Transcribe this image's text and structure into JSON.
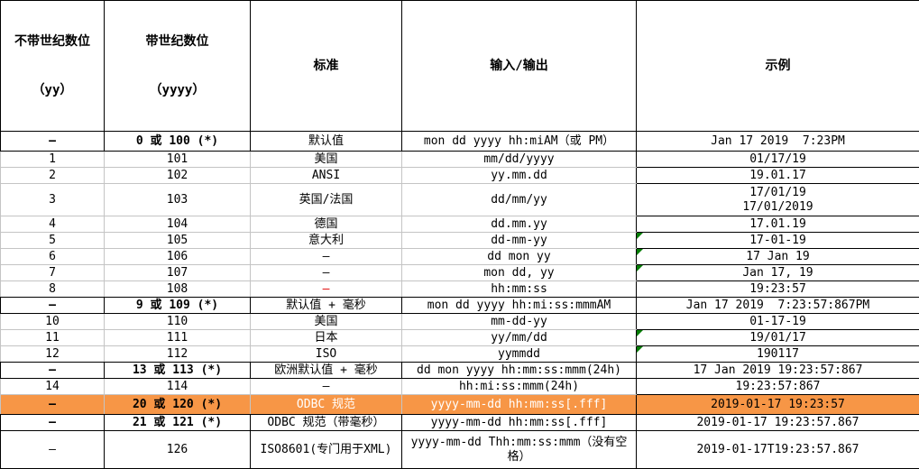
{
  "colors": {
    "grid_line": "#c4c4c4",
    "strong_border": "#000000",
    "highlight_row_background": "#F79646",
    "highlight_row_text": "#ffffff",
    "red_dash": "#e00000",
    "green_corner_indicator": "#077d07"
  },
  "table": {
    "header": {
      "col1_line1": "不带世纪数位",
      "col1_line2": "（yy）",
      "col2_line1": "带世纪数位",
      "col2_line2": "（yyyy）",
      "col3": "标准",
      "col4": "输入/输出",
      "col5": "示例"
    },
    "rows": [
      {
        "yy": "–",
        "yyyy": "0 或 100 (*)",
        "standard": "默认值",
        "format": "mon dd yyyy hh:miAM（或 PM）",
        "example": "Jan 17 2019  7:23PM",
        "black": true,
        "bold": true,
        "h": 22
      },
      {
        "yy": "1",
        "yyyy": "101",
        "standard": "美国",
        "format": "mm/dd/yyyy",
        "example": "01/17/19"
      },
      {
        "yy": "2",
        "yyyy": "102",
        "standard": "ANSI",
        "format": "yy.mm.dd",
        "example": "19.01.17"
      },
      {
        "yy": "3",
        "yyyy": "103",
        "standard": "英国/法国",
        "format": "dd/mm/yy",
        "example_lines": [
          "17/01/19",
          "17/01/2019"
        ],
        "h": 36
      },
      {
        "yy": "4",
        "yyyy": "104",
        "standard": "德国",
        "format": "dd.mm.yy",
        "example": "17.01.19"
      },
      {
        "yy": "5",
        "yyyy": "105",
        "standard": "意大利",
        "format": "dd-mm-yy",
        "example": "17-01-19",
        "triangle": true
      },
      {
        "yy": "6",
        "yyyy": "106",
        "standard": "–",
        "format": "dd mon yy",
        "example": "17 Jan 19",
        "triangle": true
      },
      {
        "yy": "7",
        "yyyy": "107",
        "standard": "–",
        "format": "mon dd, yy",
        "example": "Jan 17, 19",
        "triangle": true
      },
      {
        "yy": "8",
        "yyyy": "108",
        "standard": "–",
        "standard_red": true,
        "format": "hh:mm:ss",
        "example": "19:23:57"
      },
      {
        "yy": "–",
        "yyyy": "9 或 109 (*)",
        "standard": "默认值 + 毫秒",
        "format": "mon dd yyyy hh:mi:ss:mmmAM",
        "example": "Jan 17 2019  7:23:57:867PM",
        "black": true,
        "bold": true
      },
      {
        "yy": "10",
        "yyyy": "110",
        "standard": "美国",
        "format": "mm-dd-yy",
        "example": "01-17-19"
      },
      {
        "yy": "11",
        "yyyy": "111",
        "standard": "日本",
        "format": "yy/mm/dd",
        "example": "19/01/17",
        "triangle": true
      },
      {
        "yy": "12",
        "yyyy": "112",
        "standard": "ISO",
        "format": "yymmdd",
        "example": "190117",
        "triangle": true
      },
      {
        "yy": "–",
        "yyyy": "13 或 113 (*)",
        "standard": "欧洲默认值 + 毫秒",
        "format": "dd mon yyyy hh:mm:ss:mmm(24h)",
        "example": "17 Jan 2019 19:23:57:867",
        "black": true,
        "bold": true
      },
      {
        "yy": "14",
        "yyyy": "114",
        "standard": "–",
        "format": "hh:mi:ss:mmm(24h)",
        "example": "19:23:57:867"
      },
      {
        "yy": "–",
        "yyyy": "20 或 120 (*)",
        "standard": "ODBC 规范",
        "format": "yyyy-mm-dd hh:mm:ss[.fff]",
        "example": "2019-01-17 19:23:57",
        "highlight": true,
        "bold": true,
        "h": 22
      },
      {
        "yy": "–",
        "yyyy": "21 或 121 (*)",
        "standard": "ODBC 规范（带毫秒）",
        "format": "yyyy-mm-dd hh:mm:ss[.fff]",
        "example": "2019-01-17 19:23:57.867",
        "black": true,
        "bold": true
      },
      {
        "yy": "–",
        "yyyy": "126",
        "standard": "ISO8601(专门用于XML)",
        "format": "yyyy-mm-dd Thh:mm:ss:mmm（没有空格）",
        "example": "2019-01-17T19:23:57.867",
        "black": true,
        "h": 42
      }
    ]
  }
}
